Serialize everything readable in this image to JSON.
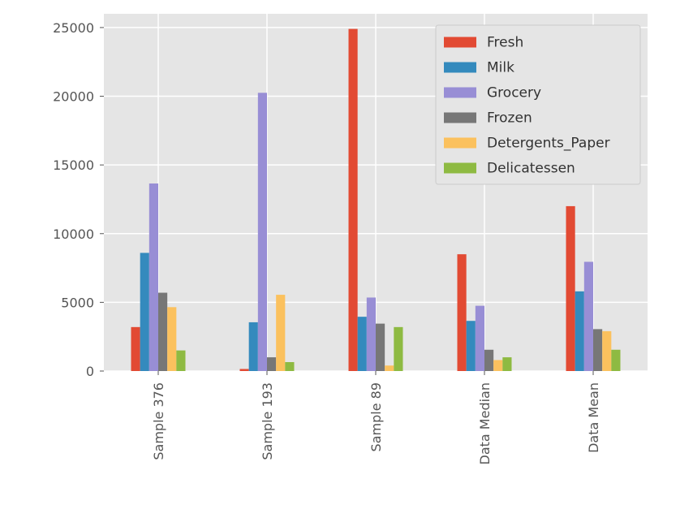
{
  "chart_data": {
    "type": "bar",
    "categories": [
      "Sample 376",
      "Sample 193",
      "Sample 89",
      "Data Median",
      "Data Mean"
    ],
    "series": [
      {
        "name": "Fresh",
        "values": [
          3200,
          150,
          24900,
          8500,
          12000
        ]
      },
      {
        "name": "Milk",
        "values": [
          8600,
          3550,
          3950,
          3650,
          5800
        ]
      },
      {
        "name": "Grocery",
        "values": [
          13650,
          20250,
          5350,
          4750,
          7950
        ]
      },
      {
        "name": "Frozen",
        "values": [
          5700,
          1000,
          3450,
          1550,
          3050
        ]
      },
      {
        "name": "Detergents_Paper",
        "values": [
          4650,
          5550,
          400,
          800,
          2900
        ]
      },
      {
        "name": "Delicatessen",
        "values": [
          1500,
          650,
          3200,
          1000,
          1550
        ]
      }
    ],
    "colors": [
      "#E24A33",
      "#348ABD",
      "#988ED5",
      "#777777",
      "#FBC15E",
      "#8EBA42"
    ],
    "y_ticks": [
      0,
      5000,
      10000,
      15000,
      20000,
      25000
    ],
    "ylim": [
      0,
      26000
    ],
    "title": "",
    "xlabel": "",
    "ylabel": "",
    "grid": true,
    "legend_position": "top-right",
    "background": "#E5E5E5",
    "grid_color": "#FFFFFF"
  }
}
